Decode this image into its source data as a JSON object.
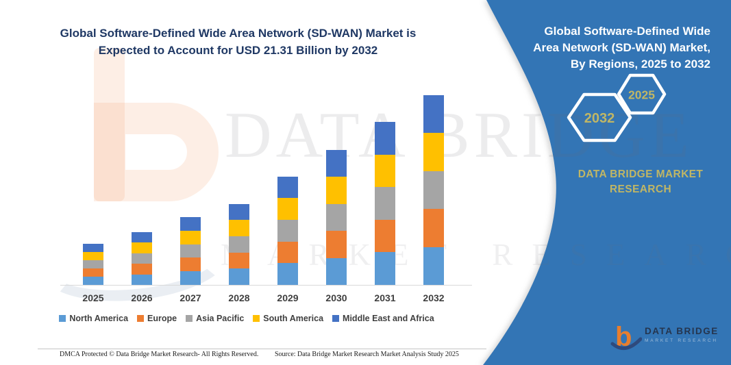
{
  "left_panel": {
    "title_line1": "Global Software-Defined Wide Area Network (SD-WAN) Market is",
    "title_line2": "Expected to Account for USD 21.31 Billion by 2032"
  },
  "chart_data": {
    "type": "bar",
    "stacked": true,
    "title": "Global Software-Defined Wide Area Network (SD-WAN) Market is Expected to Account for USD 21.31 Billion by 2032",
    "unit": "USD Billion",
    "categories": [
      "2025",
      "2026",
      "2027",
      "2028",
      "2029",
      "2030",
      "2031",
      "2032"
    ],
    "series": [
      {
        "name": "North America",
        "color": "#5B9BD5",
        "values": [
          0.92,
          1.19,
          1.52,
          1.82,
          2.44,
          3.04,
          3.66,
          4.26
        ]
      },
      {
        "name": "Europe",
        "color": "#ED7D31",
        "values": [
          0.92,
          1.19,
          1.52,
          1.82,
          2.44,
          3.04,
          3.66,
          4.26
        ]
      },
      {
        "name": "Asia Pacific",
        "color": "#A5A5A5",
        "values": [
          0.92,
          1.19,
          1.52,
          1.82,
          2.44,
          3.04,
          3.66,
          4.26
        ]
      },
      {
        "name": "South America",
        "color": "#FFC000",
        "values": [
          0.92,
          1.19,
          1.52,
          1.82,
          2.44,
          3.04,
          3.66,
          4.26
        ]
      },
      {
        "name": "Middle East and Africa",
        "color": "#4472C4",
        "values": [
          0.92,
          1.19,
          1.52,
          1.82,
          2.44,
          3.04,
          3.66,
          4.26
        ]
      }
    ],
    "totals": [
      4.6,
      5.95,
      7.6,
      9.1,
      12.2,
      15.2,
      18.3,
      21.31
    ],
    "ylim": [
      0,
      22
    ],
    "grid": false,
    "y_axis_visible": false,
    "legend_position": "bottom"
  },
  "right_panel": {
    "title_line1": "Global Software-Defined Wide",
    "title_line2": "Area Network (SD-WAN) Market,",
    "title_line3": "By Regions, 2025 to 2032",
    "hexagon_back_year": "2032",
    "hexagon_front_year": "2025",
    "brand_line1": "DATA BRIDGE MARKET",
    "brand_line2": "RESEARCH",
    "logo_line1": "DATA BRIDGE",
    "logo_line2": "MARKET RESEARCH"
  },
  "watermark": {
    "line1": "DATA BRIDGE",
    "line2": "MARKET RESEARCH"
  },
  "footer": {
    "dmca": "DMCA Protected © Data Bridge Market Research-  All Rights Reserved.",
    "source": "Source: Data Bridge Market Research  Market Analysis Study 2025"
  },
  "colors": {
    "panel_blue": "#3375B5",
    "title_navy": "#1F3864",
    "gold": "#C0B665",
    "axis_line": "#D9D9D9",
    "label_gray": "#3F3F3F",
    "logo_orange": "#E87E2E",
    "logo_navy": "#2E4A7D"
  }
}
